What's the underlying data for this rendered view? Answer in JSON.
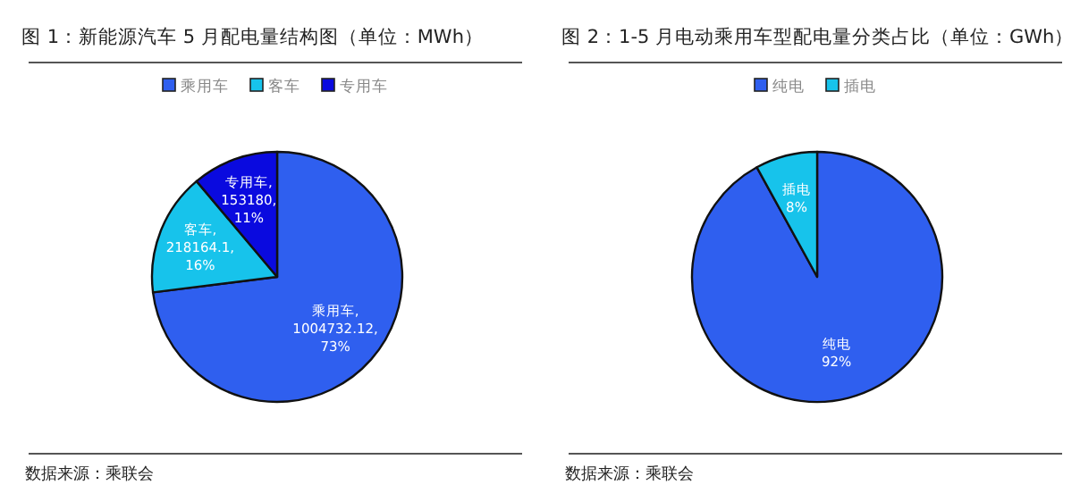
{
  "chart_data": [
    {
      "type": "pie",
      "title": "图 1：新能源汽车 5 月配电量结构图（单位：MWh）",
      "categories": [
        "乘用车",
        "客车",
        "专用车"
      ],
      "values": [
        1004732.12,
        218164.1,
        153180
      ],
      "colors": [
        "#2f5fef",
        "#17c3eb",
        "#0a0adf"
      ],
      "value_labels": [
        "乘用车,\n1004732.12,\n73%",
        "客车,\n218164.1,\n16%",
        "专用车,\n153180,\n11%"
      ],
      "legend": "top",
      "annotations": [
        "数据来源：乘联会"
      ]
    },
    {
      "type": "pie",
      "title": "图 2：1-5 月电动乘用车型配电量分类占比（单位：GWh）",
      "categories": [
        "纯电",
        "插电"
      ],
      "values": [
        92,
        8
      ],
      "colors": [
        "#2f5fef",
        "#17c3eb"
      ],
      "value_labels": [
        "纯电\n92%",
        "插电\n8%"
      ],
      "legend": "top",
      "annotations": [
        "数据来源：乘联会"
      ]
    }
  ]
}
